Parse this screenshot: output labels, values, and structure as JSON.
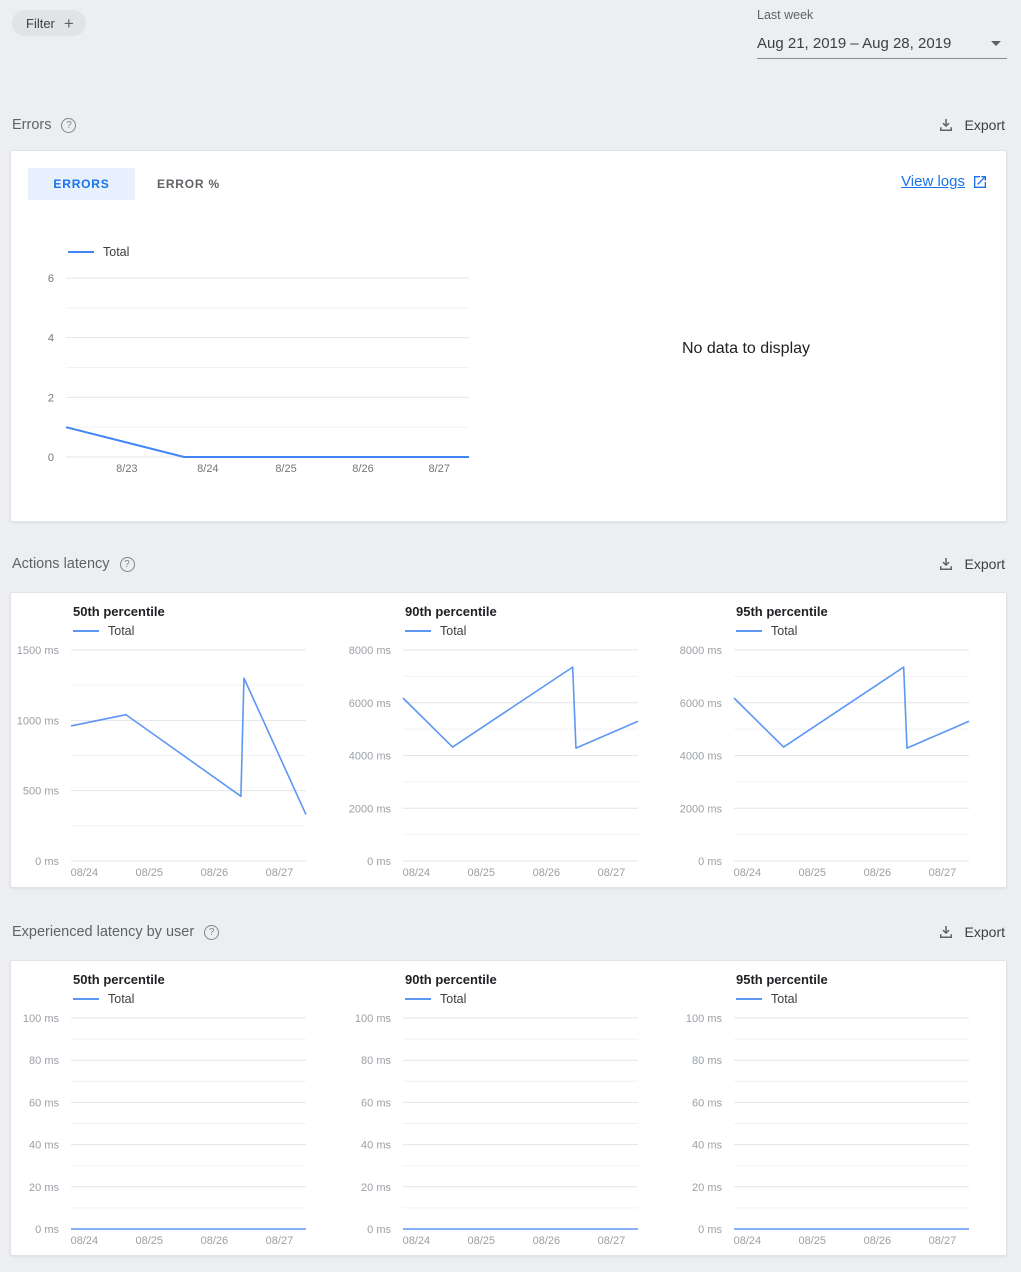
{
  "colors": {
    "accent_blue": "#1a73e8",
    "errors_line": "#4285f4",
    "latency_line": "#5e97f3",
    "card_bg": "#ffffff",
    "page_bg": "#eceef1",
    "tab_selected_bg": "#e8f0fe"
  },
  "topbar": {
    "filter_label": "Filter",
    "filter_plus": "+",
    "range_caption": "Last week",
    "range_value": "Aug 21, 2019 – Aug 28, 2019"
  },
  "sections": {
    "errors": {
      "title": "Errors",
      "help": "?",
      "export_label": "Export",
      "tabs": [
        {
          "label": "ERRORS",
          "selected": true
        },
        {
          "label": "ERROR %",
          "selected": false
        }
      ],
      "view_logs_label": "View logs",
      "no_data_text": "No data to display"
    },
    "actions_latency": {
      "title": "Actions latency",
      "help": "?",
      "export_label": "Export"
    },
    "user_latency": {
      "title": "Experienced latency by user",
      "help": "?",
      "export_label": "Export"
    }
  },
  "chart_data": [
    {
      "id": "errors-total",
      "type": "line",
      "title": "",
      "legend": "Total",
      "line_color": "#4285f4",
      "line_width": 2,
      "tick_color": "#757575",
      "ylim": [
        0,
        6
      ],
      "y_ticks": [
        {
          "v": 0,
          "label": "0"
        },
        {
          "v": 2,
          "label": "2"
        },
        {
          "v": 4,
          "label": "4"
        },
        {
          "v": 6,
          "label": "6"
        }
      ],
      "y_minor": [
        1,
        3,
        5
      ],
      "x_ticks": [
        {
          "pos": 0.151,
          "label": "8/23"
        },
        {
          "pos": 0.352,
          "label": "8/24"
        },
        {
          "pos": 0.546,
          "label": "8/25"
        },
        {
          "pos": 0.737,
          "label": "8/26"
        },
        {
          "pos": 0.926,
          "label": "8/27"
        }
      ],
      "series": [
        {
          "name": "Total",
          "points": [
            [
              0,
              1
            ],
            [
              0.293,
              0
            ],
            [
              1,
              0
            ]
          ]
        }
      ]
    },
    {
      "id": "actions-50th",
      "type": "line",
      "title": "50th percentile",
      "legend": "Total",
      "line_color": "#5e97f3",
      "line_width": 1.6,
      "tick_color": "#9aa0a6",
      "ylim": [
        0,
        1500
      ],
      "y_ticks": [
        {
          "v": 0,
          "label": "0 ms"
        },
        {
          "v": 500,
          "label": "500 ms"
        },
        {
          "v": 1000,
          "label": "1000 ms"
        },
        {
          "v": 1500,
          "label": "1500 ms"
        }
      ],
      "y_minor": [
        250,
        750,
        1250
      ],
      "x_ticks": [
        {
          "pos": 0.057,
          "label": "08/24"
        },
        {
          "pos": 0.333,
          "label": "08/25"
        },
        {
          "pos": 0.61,
          "label": "08/26"
        },
        {
          "pos": 0.887,
          "label": "08/27"
        }
      ],
      "series": [
        {
          "name": "Total",
          "points": [
            [
              0,
              960
            ],
            [
              0.234,
              1040
            ],
            [
              0.723,
              460
            ],
            [
              0.736,
              1300
            ],
            [
              1,
              330
            ]
          ]
        }
      ]
    },
    {
      "id": "actions-90th",
      "type": "line",
      "title": "90th percentile",
      "legend": "Total",
      "line_color": "#5e97f3",
      "line_width": 1.6,
      "tick_color": "#9aa0a6",
      "ylim": [
        0,
        8000
      ],
      "y_ticks": [
        {
          "v": 0,
          "label": "0 ms"
        },
        {
          "v": 2000,
          "label": "2000 ms"
        },
        {
          "v": 4000,
          "label": "4000 ms"
        },
        {
          "v": 6000,
          "label": "6000 ms"
        },
        {
          "v": 8000,
          "label": "8000 ms"
        }
      ],
      "y_minor": [
        1000,
        3000,
        5000,
        7000
      ],
      "x_ticks": [
        {
          "pos": 0.057,
          "label": "08/24"
        },
        {
          "pos": 0.333,
          "label": "08/25"
        },
        {
          "pos": 0.61,
          "label": "08/26"
        },
        {
          "pos": 0.887,
          "label": "08/27"
        }
      ],
      "series": [
        {
          "name": "Total",
          "points": [
            [
              0,
              6180
            ],
            [
              0.211,
              4320
            ],
            [
              0.722,
              7350
            ],
            [
              0.736,
              4280
            ],
            [
              1,
              5300
            ]
          ]
        }
      ]
    },
    {
      "id": "actions-95th",
      "type": "line",
      "title": "95th percentile",
      "legend": "Total",
      "line_color": "#5e97f3",
      "line_width": 1.6,
      "tick_color": "#9aa0a6",
      "ylim": [
        0,
        8000
      ],
      "y_ticks": [
        {
          "v": 0,
          "label": "0 ms"
        },
        {
          "v": 2000,
          "label": "2000 ms"
        },
        {
          "v": 4000,
          "label": "4000 ms"
        },
        {
          "v": 6000,
          "label": "6000 ms"
        },
        {
          "v": 8000,
          "label": "8000 ms"
        }
      ],
      "y_minor": [
        1000,
        3000,
        5000,
        7000
      ],
      "x_ticks": [
        {
          "pos": 0.057,
          "label": "08/24"
        },
        {
          "pos": 0.333,
          "label": "08/25"
        },
        {
          "pos": 0.61,
          "label": "08/26"
        },
        {
          "pos": 0.887,
          "label": "08/27"
        }
      ],
      "series": [
        {
          "name": "Total",
          "points": [
            [
              0,
              6180
            ],
            [
              0.211,
              4320
            ],
            [
              0.722,
              7350
            ],
            [
              0.736,
              4280
            ],
            [
              1,
              5300
            ]
          ]
        }
      ]
    },
    {
      "id": "user-50th",
      "type": "line",
      "title": "50th percentile",
      "legend": "Total",
      "line_color": "#5e97f3",
      "line_width": 1.6,
      "tick_color": "#9aa0a6",
      "ylim": [
        0,
        100
      ],
      "y_ticks": [
        {
          "v": 0,
          "label": "0 ms"
        },
        {
          "v": 20,
          "label": "20 ms"
        },
        {
          "v": 40,
          "label": "40 ms"
        },
        {
          "v": 60,
          "label": "60 ms"
        },
        {
          "v": 80,
          "label": "80 ms"
        },
        {
          "v": 100,
          "label": "100 ms"
        }
      ],
      "y_minor": [
        10,
        30,
        50,
        70,
        90
      ],
      "x_ticks": [
        {
          "pos": 0.057,
          "label": "08/24"
        },
        {
          "pos": 0.333,
          "label": "08/25"
        },
        {
          "pos": 0.61,
          "label": "08/26"
        },
        {
          "pos": 0.887,
          "label": "08/27"
        }
      ],
      "series": [
        {
          "name": "Total",
          "points": [
            [
              0,
              0
            ],
            [
              1,
              0
            ]
          ]
        }
      ]
    },
    {
      "id": "user-90th",
      "type": "line",
      "title": "90th percentile",
      "legend": "Total",
      "line_color": "#5e97f3",
      "line_width": 1.6,
      "tick_color": "#9aa0a6",
      "ylim": [
        0,
        100
      ],
      "y_ticks": [
        {
          "v": 0,
          "label": "0 ms"
        },
        {
          "v": 20,
          "label": "20 ms"
        },
        {
          "v": 40,
          "label": "40 ms"
        },
        {
          "v": 60,
          "label": "60 ms"
        },
        {
          "v": 80,
          "label": "80 ms"
        },
        {
          "v": 100,
          "label": "100 ms"
        }
      ],
      "y_minor": [
        10,
        30,
        50,
        70,
        90
      ],
      "x_ticks": [
        {
          "pos": 0.057,
          "label": "08/24"
        },
        {
          "pos": 0.333,
          "label": "08/25"
        },
        {
          "pos": 0.61,
          "label": "08/26"
        },
        {
          "pos": 0.887,
          "label": "08/27"
        }
      ],
      "series": [
        {
          "name": "Total",
          "points": [
            [
              0,
              0
            ],
            [
              1,
              0
            ]
          ]
        }
      ]
    },
    {
      "id": "user-95th",
      "type": "line",
      "title": "95th percentile",
      "legend": "Total",
      "line_color": "#5e97f3",
      "line_width": 1.6,
      "tick_color": "#9aa0a6",
      "ylim": [
        0,
        100
      ],
      "y_ticks": [
        {
          "v": 0,
          "label": "0 ms"
        },
        {
          "v": 20,
          "label": "20 ms"
        },
        {
          "v": 40,
          "label": "40 ms"
        },
        {
          "v": 60,
          "label": "60 ms"
        },
        {
          "v": 80,
          "label": "80 ms"
        },
        {
          "v": 100,
          "label": "100 ms"
        }
      ],
      "y_minor": [
        10,
        30,
        50,
        70,
        90
      ],
      "x_ticks": [
        {
          "pos": 0.057,
          "label": "08/24"
        },
        {
          "pos": 0.333,
          "label": "08/25"
        },
        {
          "pos": 0.61,
          "label": "08/26"
        },
        {
          "pos": 0.887,
          "label": "08/27"
        }
      ],
      "series": [
        {
          "name": "Total",
          "points": [
            [
              0,
              0
            ],
            [
              1,
              0
            ]
          ]
        }
      ]
    }
  ]
}
